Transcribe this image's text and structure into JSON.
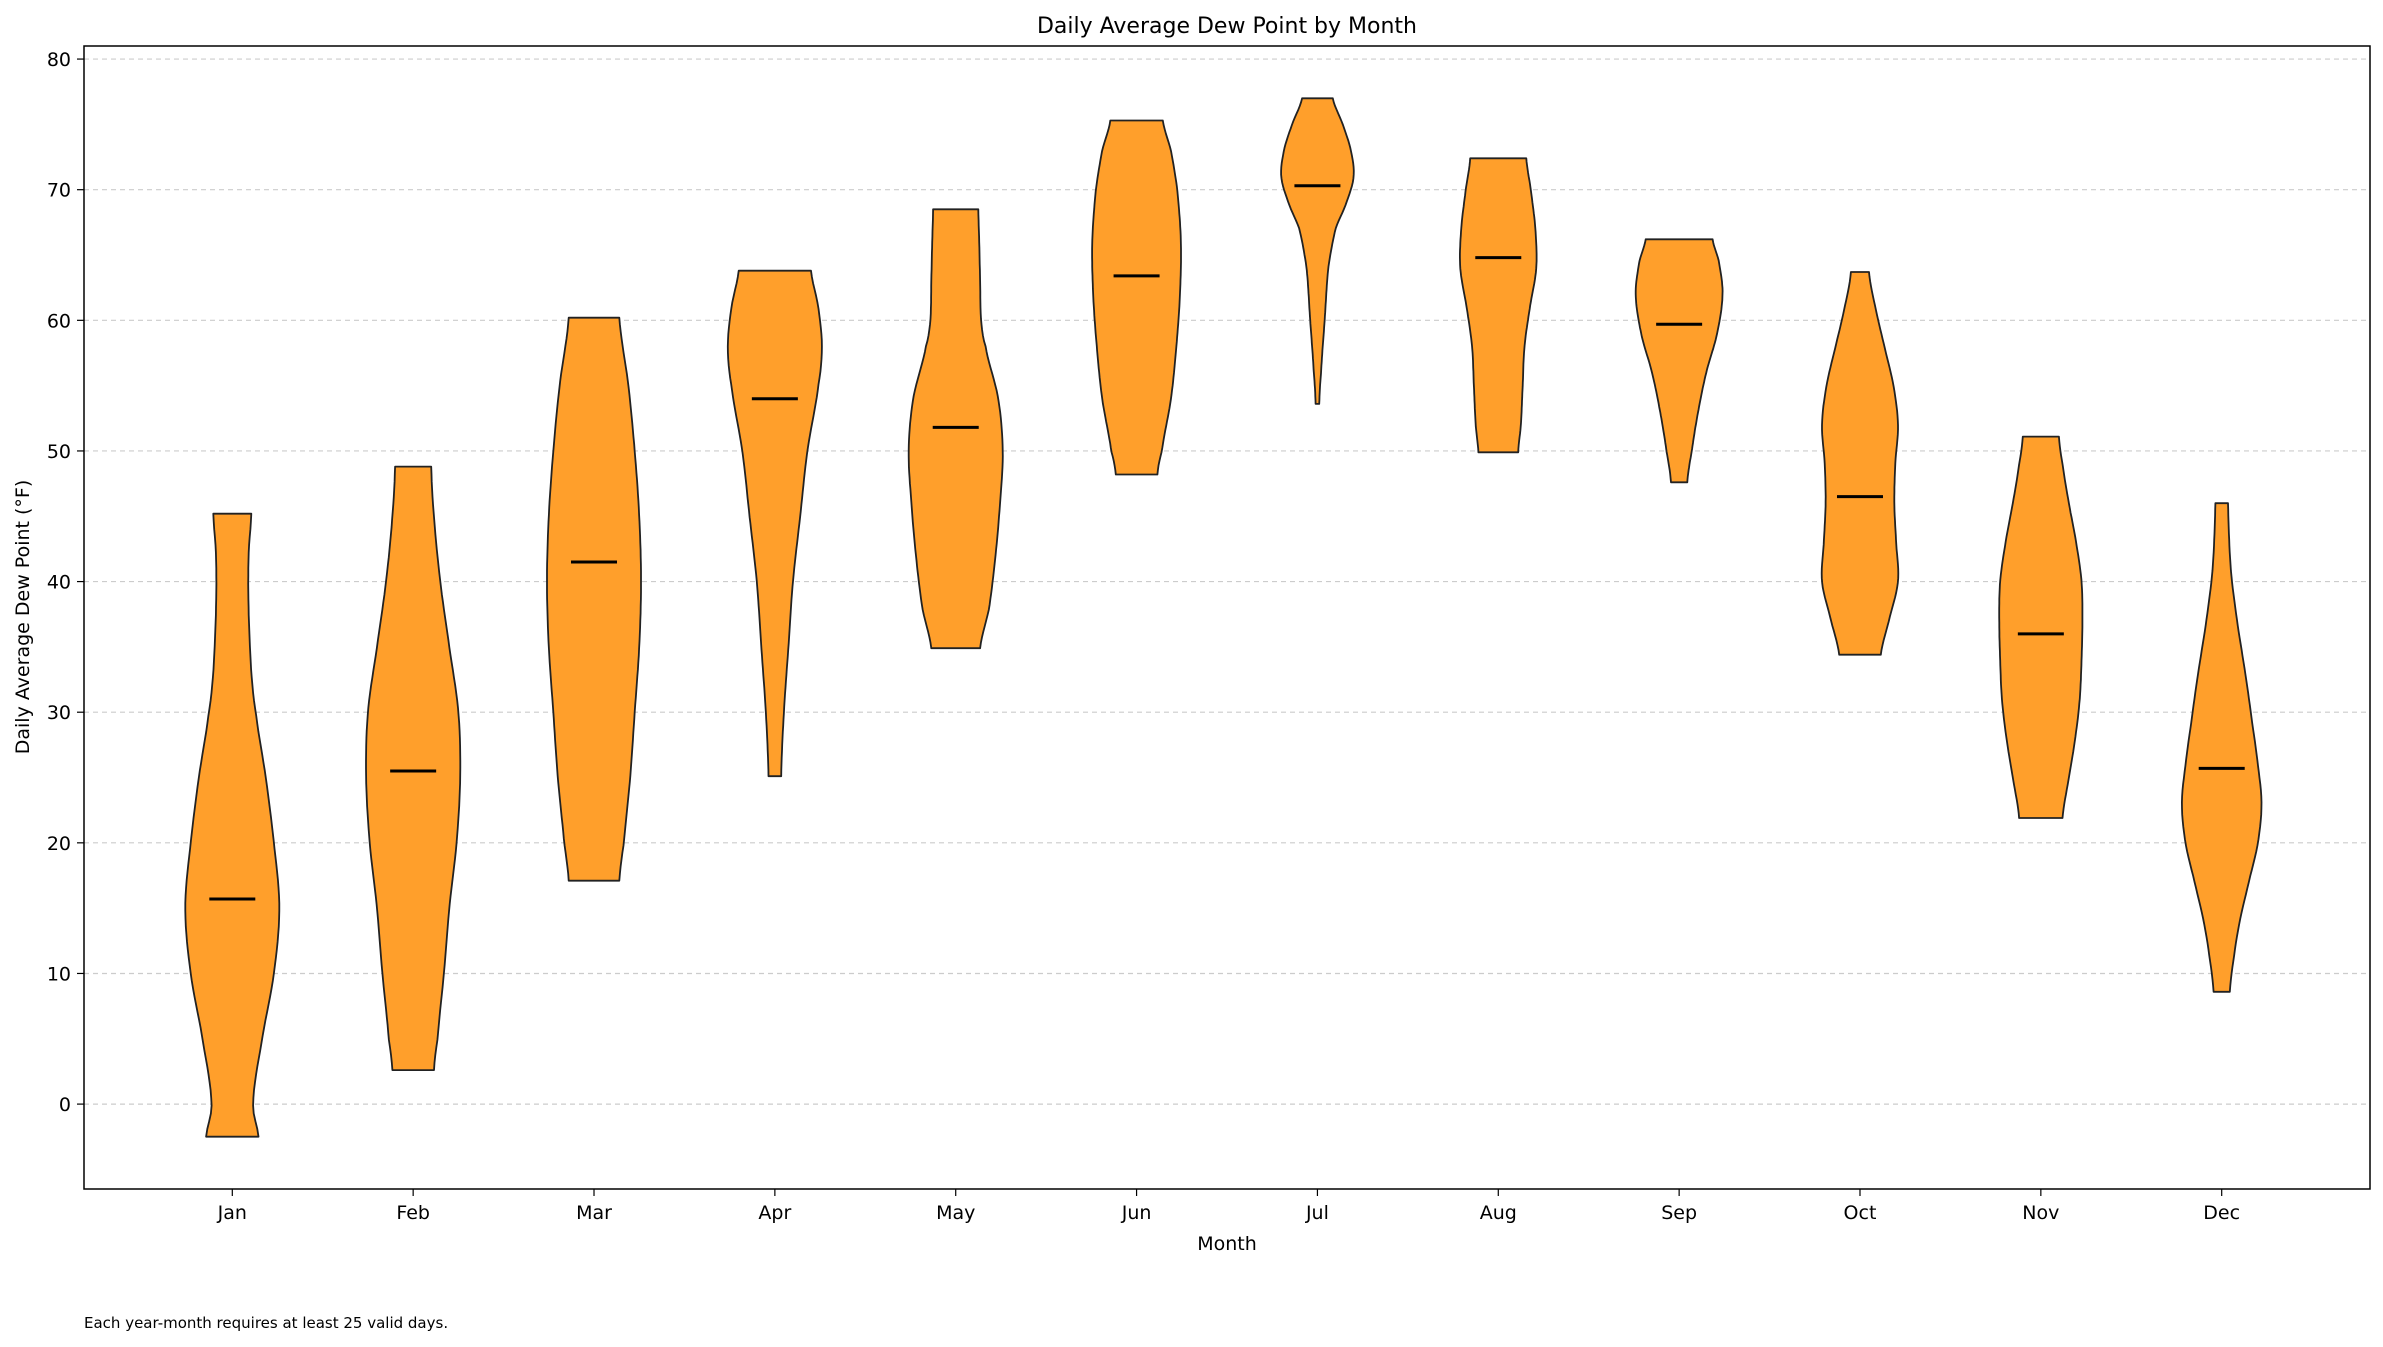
{
  "chart_data": {
    "type": "violin",
    "title": "Daily Average Dew Point by Month",
    "xlabel": "Month",
    "ylabel": "Daily Average Dew Point (°F)",
    "ylim": [
      -6.5,
      81
    ],
    "yticks": [
      0,
      10,
      20,
      30,
      40,
      50,
      60,
      70,
      80
    ],
    "grid": "y-dashed",
    "colors": {
      "fill": "#ff9f2b",
      "edge": "#222222",
      "median": "#000000",
      "grid": "#cccccc"
    },
    "categories": [
      "Jan",
      "Feb",
      "Mar",
      "Apr",
      "May",
      "Jun",
      "Jul",
      "Aug",
      "Sep",
      "Oct",
      "Nov",
      "Dec"
    ],
    "series": [
      {
        "category": "Jan",
        "min": -2.5,
        "max": 45.2,
        "median": 15.7,
        "profile": [
          [
            -2.5,
            0.29
          ],
          [
            0,
            0.23
          ],
          [
            5,
            0.33
          ],
          [
            10,
            0.46
          ],
          [
            15,
            0.52
          ],
          [
            20,
            0.46
          ],
          [
            25,
            0.37
          ],
          [
            30,
            0.26
          ],
          [
            33,
            0.21
          ],
          [
            38,
            0.18
          ],
          [
            42,
            0.18
          ],
          [
            45.2,
            0.21
          ]
        ]
      },
      {
        "category": "Feb",
        "min": 2.6,
        "max": 48.8,
        "median": 25.5,
        "profile": [
          [
            2.6,
            0.23
          ],
          [
            5,
            0.27
          ],
          [
            10,
            0.34
          ],
          [
            15,
            0.4
          ],
          [
            20,
            0.48
          ],
          [
            25,
            0.52
          ],
          [
            30,
            0.5
          ],
          [
            35,
            0.4
          ],
          [
            40,
            0.3
          ],
          [
            45,
            0.23
          ],
          [
            48.8,
            0.2
          ]
        ]
      },
      {
        "category": "Mar",
        "min": 17.1,
        "max": 60.2,
        "median": 41.5,
        "profile": [
          [
            17.1,
            0.28
          ],
          [
            20,
            0.33
          ],
          [
            25,
            0.4
          ],
          [
            30,
            0.45
          ],
          [
            35,
            0.5
          ],
          [
            40,
            0.52
          ],
          [
            45,
            0.5
          ],
          [
            50,
            0.45
          ],
          [
            55,
            0.38
          ],
          [
            60.2,
            0.28
          ]
        ]
      },
      {
        "category": "Apr",
        "min": 25.1,
        "max": 63.8,
        "median": 54.0,
        "profile": [
          [
            25.1,
            0.07
          ],
          [
            30,
            0.1
          ],
          [
            35,
            0.15
          ],
          [
            40,
            0.2
          ],
          [
            45,
            0.28
          ],
          [
            50,
            0.36
          ],
          [
            55,
            0.48
          ],
          [
            58,
            0.52
          ],
          [
            61,
            0.48
          ],
          [
            63.8,
            0.4
          ]
        ]
      },
      {
        "category": "May",
        "min": 34.9,
        "max": 68.5,
        "median": 51.8,
        "profile": [
          [
            34.9,
            0.27
          ],
          [
            38,
            0.37
          ],
          [
            42,
            0.44
          ],
          [
            46,
            0.49
          ],
          [
            50,
            0.52
          ],
          [
            54,
            0.47
          ],
          [
            58,
            0.33
          ],
          [
            60,
            0.28
          ],
          [
            63,
            0.27
          ],
          [
            66,
            0.26
          ],
          [
            68.5,
            0.25
          ]
        ]
      },
      {
        "category": "Jun",
        "min": 48.2,
        "max": 75.3,
        "median": 63.4,
        "profile": [
          [
            48.2,
            0.23
          ],
          [
            50,
            0.28
          ],
          [
            54,
            0.38
          ],
          [
            58,
            0.44
          ],
          [
            62,
            0.48
          ],
          [
            66,
            0.49
          ],
          [
            70,
            0.45
          ],
          [
            73,
            0.38
          ],
          [
            75.3,
            0.29
          ]
        ]
      },
      {
        "category": "Jul",
        "min": 53.6,
        "max": 77.0,
        "median": 70.3,
        "profile": [
          [
            53.6,
            0.02
          ],
          [
            56,
            0.04
          ],
          [
            60,
            0.08
          ],
          [
            64,
            0.12
          ],
          [
            67,
            0.2
          ],
          [
            69,
            0.32
          ],
          [
            71,
            0.4
          ],
          [
            73,
            0.37
          ],
          [
            75,
            0.28
          ],
          [
            77.0,
            0.17
          ]
        ]
      },
      {
        "category": "Aug",
        "min": 49.9,
        "max": 72.4,
        "median": 64.8,
        "profile": [
          [
            49.9,
            0.22
          ],
          [
            52,
            0.25
          ],
          [
            55,
            0.27
          ],
          [
            58,
            0.29
          ],
          [
            61,
            0.35
          ],
          [
            64,
            0.42
          ],
          [
            67,
            0.41
          ],
          [
            70,
            0.36
          ],
          [
            72.4,
            0.31
          ]
        ]
      },
      {
        "category": "Sep",
        "min": 47.6,
        "max": 66.2,
        "median": 59.7,
        "profile": [
          [
            47.6,
            0.09
          ],
          [
            50,
            0.14
          ],
          [
            53,
            0.21
          ],
          [
            56,
            0.3
          ],
          [
            59,
            0.42
          ],
          [
            62,
            0.48
          ],
          [
            64.5,
            0.44
          ],
          [
            66.2,
            0.37
          ]
        ]
      },
      {
        "category": "Oct",
        "min": 34.4,
        "max": 63.7,
        "median": 46.5,
        "profile": [
          [
            34.4,
            0.23
          ],
          [
            37,
            0.32
          ],
          [
            40,
            0.42
          ],
          [
            43,
            0.4
          ],
          [
            46,
            0.38
          ],
          [
            49,
            0.39
          ],
          [
            52,
            0.42
          ],
          [
            55,
            0.37
          ],
          [
            58,
            0.27
          ],
          [
            61,
            0.17
          ],
          [
            63.7,
            0.1
          ]
        ]
      },
      {
        "category": "Nov",
        "min": 21.9,
        "max": 51.1,
        "median": 36.0,
        "profile": [
          [
            21.9,
            0.24
          ],
          [
            25,
            0.31
          ],
          [
            28,
            0.38
          ],
          [
            31,
            0.43
          ],
          [
            34,
            0.45
          ],
          [
            37,
            0.46
          ],
          [
            40,
            0.45
          ],
          [
            43,
            0.39
          ],
          [
            46,
            0.31
          ],
          [
            49,
            0.24
          ],
          [
            51.1,
            0.2
          ]
        ]
      },
      {
        "category": "Dec",
        "min": 8.6,
        "max": 46.0,
        "median": 25.7,
        "profile": [
          [
            8.6,
            0.09
          ],
          [
            11,
            0.13
          ],
          [
            14,
            0.2
          ],
          [
            17,
            0.3
          ],
          [
            20,
            0.4
          ],
          [
            23,
            0.44
          ],
          [
            26,
            0.4
          ],
          [
            29,
            0.34
          ],
          [
            33,
            0.26
          ],
          [
            37,
            0.17
          ],
          [
            41,
            0.1
          ],
          [
            46.0,
            0.07
          ]
        ]
      }
    ]
  },
  "footnote": "Each year-month requires at least 25 valid days."
}
